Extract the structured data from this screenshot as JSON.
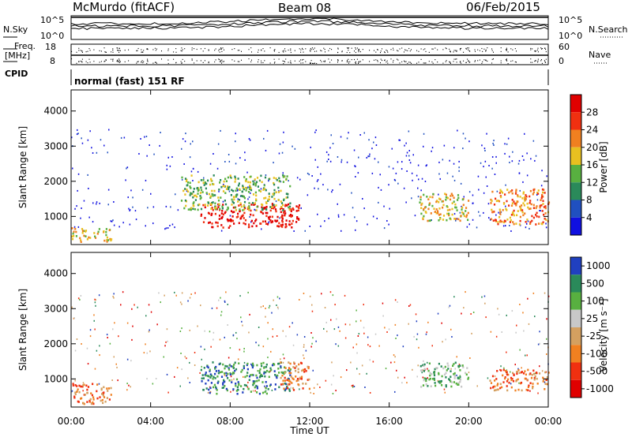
{
  "header": {
    "station": "McMurdo (fitACF)",
    "beam": "Beam 08",
    "date": "06/Feb/2015"
  },
  "strip": {
    "nsky_label": "N.Sky",
    "nsky_ticks": [
      "10^5",
      "10^0"
    ],
    "nsearch_label": "N.Search",
    "nsearch_ticks": [
      "10^5",
      "10^0"
    ],
    "freq_label": "Freq.",
    "freq_unit": "[MHz]",
    "freq_ticks": [
      "18",
      "8"
    ],
    "nave_label": "Nave",
    "nave_ticks": [
      "60",
      "0"
    ],
    "cpid_label": "CPID",
    "cpid_value": "normal (fast) 151 RF"
  },
  "colors": {
    "power_scale": [
      "#1010e0",
      "#2050c0",
      "#2a8a5a",
      "#58b040",
      "#e8c020",
      "#f08020",
      "#f03010",
      "#e00000"
    ],
    "velocity_scale": [
      "#2040c0",
      "#2a8a5a",
      "#58b040",
      "#c8c8c8",
      "#d4a060",
      "#f08020",
      "#f03010",
      "#e00000"
    ]
  },
  "chart_data": [
    {
      "type": "heatmap",
      "title": "",
      "xlabel": "Time UT",
      "ylabel": "Slant Range [km]",
      "x_ticks": [
        "00:00",
        "04:00",
        "08:00",
        "12:00",
        "16:00",
        "20:00",
        "00:00"
      ],
      "y_ticks": [
        1000,
        2000,
        3000,
        4000
      ],
      "ylim": [
        200,
        4600
      ],
      "colorbar": {
        "label": "Power [dB]",
        "ticks": [
          4,
          8,
          12,
          16,
          20,
          24,
          28
        ]
      },
      "echo_regions": [
        {
          "t_start": 0.0,
          "t_end": 2.0,
          "r_start": 300,
          "r_end": 700,
          "level": 4
        },
        {
          "t_start": 6.5,
          "t_end": 11.5,
          "r_start": 700,
          "r_end": 1400,
          "level": 7
        },
        {
          "t_start": 5.5,
          "t_end": 11.0,
          "r_start": 1200,
          "r_end": 2200,
          "level": 3
        },
        {
          "t_start": 17.5,
          "t_end": 20.0,
          "r_start": 900,
          "r_end": 1700,
          "level": 4
        },
        {
          "t_start": 21.0,
          "t_end": 24.0,
          "r_start": 800,
          "r_end": 1800,
          "level": 5
        }
      ]
    },
    {
      "type": "heatmap",
      "title": "",
      "xlabel": "Time UT",
      "ylabel": "Slant Range [km]",
      "x_ticks": [
        "00:00",
        "04:00",
        "08:00",
        "12:00",
        "16:00",
        "20:00",
        "00:00"
      ],
      "y_ticks": [
        1000,
        2000,
        3000,
        4000
      ],
      "ylim": [
        200,
        4600
      ],
      "colorbar": {
        "label": "Velocity [m s⁻¹]",
        "ticks": [
          1000,
          500,
          100,
          25,
          -25,
          -100,
          -500,
          -1000
        ]
      },
      "echo_regions": [
        {
          "t_start": 0.0,
          "t_end": 2.0,
          "r_start": 300,
          "r_end": 900,
          "level": 5
        },
        {
          "t_start": 6.5,
          "t_end": 11.0,
          "r_start": 600,
          "r_end": 1500,
          "level": 1
        },
        {
          "t_start": 10.5,
          "t_end": 12.0,
          "r_start": 700,
          "r_end": 1500,
          "level": 5
        },
        {
          "t_start": 17.5,
          "t_end": 20.0,
          "r_start": 800,
          "r_end": 1500,
          "level": 2
        },
        {
          "t_start": 21.0,
          "t_end": 24.0,
          "r_start": 700,
          "r_end": 1300,
          "level": 5
        }
      ]
    }
  ]
}
